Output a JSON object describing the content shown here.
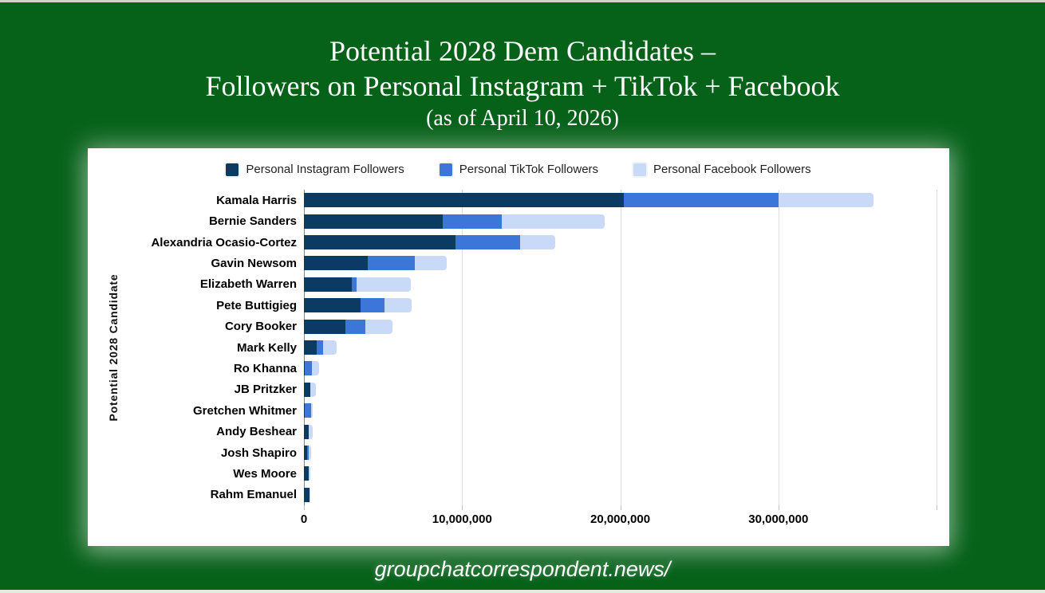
{
  "window": {
    "background_color": "#066119",
    "edge_strip_color": "#ccd5cc"
  },
  "title": {
    "line1": "Potential 2028 Dem Candidates –",
    "line2": "Followers on Personal Instagram + TikTok + Facebook",
    "line3": "(as of April 10, 2026)"
  },
  "footer": {
    "url": "groupchatcorrespondent.news/"
  },
  "chart_data": {
    "type": "bar",
    "orientation": "horizontal",
    "stacked": true,
    "title": "Potential 2028 Dem Candidates – Followers on Personal Instagram + TikTok + Facebook (as of April 10, 2026)",
    "xlabel": "",
    "ylabel": "Potential 2028 Candidate",
    "grid": true,
    "legend_position": "top",
    "xlim": [
      0,
      40400000
    ],
    "categories": [
      "Kamala Harris",
      "Bernie Sanders",
      "Alexandria Ocasio-Cortez",
      "Gavin Newsom",
      "Elizabeth Warren",
      "Pete Buttigieg",
      "Cory Booker",
      "Mark Kelly",
      "Ro Khanna",
      "JB Pritzker",
      "Gretchen Whitmer",
      "Andy Beshear",
      "Josh Shapiro",
      "Wes Moore",
      "Rahm Emanuel"
    ],
    "series": [
      {
        "name": "Personal Instagram Followers",
        "color": "#0b3a63",
        "values": [
          20200000,
          8800000,
          9600000,
          4050000,
          3050000,
          3600000,
          2600000,
          800000,
          50000,
          380000,
          50000,
          280000,
          200000,
          300000,
          350000
        ]
      },
      {
        "name": "Personal TikTok Followers",
        "color": "#3d76d9",
        "values": [
          9800000,
          3700000,
          4050000,
          2950000,
          300000,
          1500000,
          1300000,
          400000,
          450000,
          20000,
          400000,
          0,
          100000,
          0,
          0
        ]
      },
      {
        "name": "Personal Facebook Followers",
        "color": "#c9daf8",
        "values": [
          6000000,
          6500000,
          2250000,
          2050000,
          3400000,
          1700000,
          1700000,
          850000,
          480000,
          380000,
          130000,
          250000,
          170000,
          80000,
          30000
        ]
      }
    ],
    "x_axis": {
      "max": 40400000,
      "ticks": [
        {
          "value": 0,
          "label": "0"
        },
        {
          "value": 10000000,
          "label": "10,000,000"
        },
        {
          "value": 20000000,
          "label": "20,000,000"
        },
        {
          "value": 30000000,
          "label": "30,000,000"
        },
        {
          "value": 40000000,
          "label": ""
        }
      ]
    }
  }
}
